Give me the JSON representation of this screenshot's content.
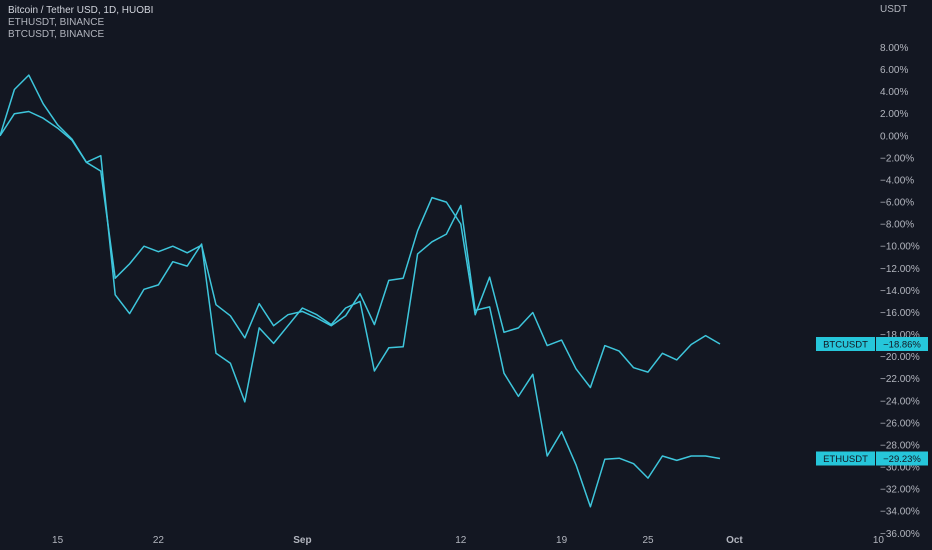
{
  "legend": {
    "main": "Bitcoin / Tether USD, 1D, HUOBI",
    "line2": "ETHUSDT, BINANCE",
    "line3": "BTCUSDT, BINANCE"
  },
  "colors": {
    "background": "#131722",
    "series_line": "#3ec6dc",
    "label_bg": "#26c6da",
    "axis_text": "#b2b5be"
  },
  "chart_data": {
    "type": "line",
    "y_unit_label": "USDT",
    "ylim": [
      -37.0,
      9.5
    ],
    "xlim": [
      0,
      63
    ],
    "y_ticks": [
      "8.00%",
      "6.00%",
      "4.00%",
      "2.00%",
      "0.00%",
      "−2.00%",
      "−4.00%",
      "−6.00%",
      "−8.00%",
      "−10.00%",
      "−12.00%",
      "−14.00%",
      "−16.00%",
      "−18.00%",
      "−20.00%",
      "−22.00%",
      "−24.00%",
      "−26.00%",
      "−28.00%",
      "−30.00%",
      "−32.00%",
      "−34.00%",
      "−36.00%"
    ],
    "x_ticks": [
      {
        "label": "15",
        "x": 4
      },
      {
        "label": "22",
        "x": 11
      },
      {
        "label": "Sep",
        "x": 21
      },
      {
        "label": "12",
        "x": 32
      },
      {
        "label": "19",
        "x": 39
      },
      {
        "label": "25",
        "x": 45
      },
      {
        "label": "Oct",
        "x": 51
      },
      {
        "label": "10",
        "x": 61
      }
    ],
    "grid": false,
    "series": [
      {
        "name": "BTCUSDT",
        "last_value": "−18.86%",
        "values": [
          0.0,
          2.0,
          2.2,
          1.6,
          0.7,
          -0.4,
          -2.4,
          -3.2,
          -12.9,
          -11.6,
          -10.0,
          -10.5,
          -10.0,
          -10.6,
          -9.9,
          -15.3,
          -16.3,
          -18.3,
          -15.2,
          -17.2,
          -16.2,
          -15.9,
          -16.5,
          -17.2,
          -16.3,
          -14.3,
          -17.1,
          -13.1,
          -12.9,
          -8.6,
          -5.6,
          -6.0,
          -8.0,
          -16.2,
          -12.8,
          -17.8,
          -17.4,
          -16.0,
          -19.0,
          -18.5,
          -21.1,
          -22.8,
          -19.0,
          -19.5,
          -21.0,
          -21.4,
          -19.7,
          -20.3,
          -18.9,
          -18.1,
          -18.86
        ]
      },
      {
        "name": "ETHUSDT",
        "last_value": "−29.23%",
        "values": [
          0.0,
          4.2,
          5.5,
          2.9,
          1.0,
          -0.3,
          -2.4,
          -1.8,
          -14.4,
          -16.1,
          -13.9,
          -13.5,
          -11.4,
          -11.8,
          -9.8,
          -19.7,
          -20.6,
          -24.1,
          -17.4,
          -18.8,
          -17.2,
          -15.6,
          -16.2,
          -17.1,
          -15.6,
          -15.0,
          -21.3,
          -19.2,
          -19.1,
          -10.7,
          -9.6,
          -8.9,
          -6.3,
          -15.8,
          -15.5,
          -21.5,
          -23.6,
          -21.6,
          -29.0,
          -26.8,
          -29.8,
          -33.6,
          -29.3,
          -29.2,
          -29.7,
          -31.0,
          -29.0,
          -29.4,
          -29.0,
          -29.0,
          -29.23
        ]
      }
    ]
  }
}
